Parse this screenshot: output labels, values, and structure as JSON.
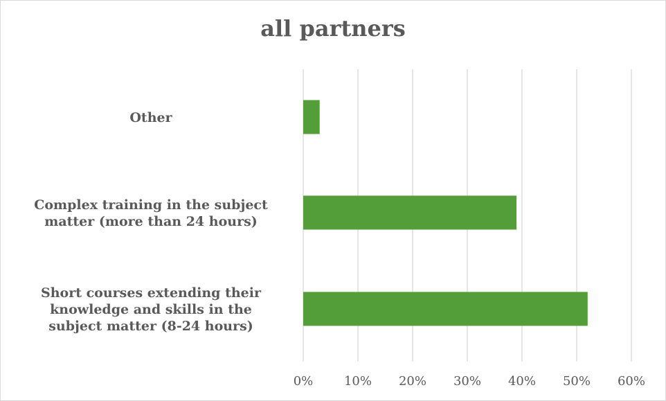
{
  "chart_data": {
    "type": "bar",
    "orientation": "horizontal",
    "title": "all partners",
    "categories": [
      "Other",
      "Complex training in the subject matter (more than 24 hours)",
      "Short courses extending their knowledge and skills in the subject matter (8-24 hours)"
    ],
    "category_label_lines": [
      [
        "Other"
      ],
      [
        "Complex training in the subject",
        "matter (more than 24 hours)"
      ],
      [
        "Short courses extending their",
        "knowledge and skills in the",
        "subject matter (8-24 hours)"
      ]
    ],
    "values": [
      3,
      39,
      52
    ],
    "xlim": [
      0,
      60
    ],
    "x_ticks": [
      0,
      10,
      20,
      30,
      40,
      50,
      60
    ],
    "x_tick_labels": [
      "0%",
      "10%",
      "20%",
      "30%",
      "40%",
      "50%",
      "60%"
    ],
    "grid": true,
    "legend": "none",
    "bar_color": "#549e39",
    "grid_color": "#d9d9d9",
    "text_color": "#595959"
  }
}
